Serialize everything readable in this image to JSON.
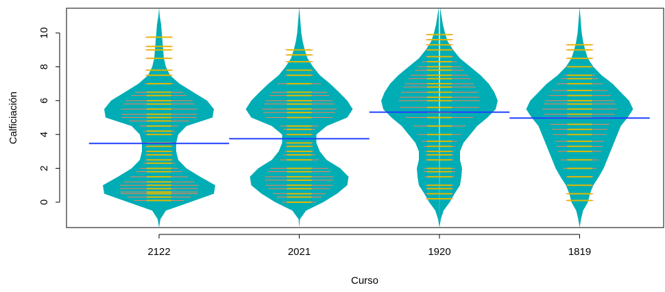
{
  "chart_data": {
    "type": "beanplot",
    "xlabel": "Curso",
    "ylabel": "Calficiación",
    "categories": [
      "2122",
      "2021",
      "1920",
      "1819"
    ],
    "ylim": [
      -1.5,
      11.46
    ],
    "yticks": [
      0,
      2,
      4,
      6,
      8,
      10
    ],
    "bean_color": "#00adb5",
    "line_color": "#e6b800",
    "outer_line_color": "#ff7f50",
    "mean_color": "#1f3fff",
    "density_y": [
      -1.5,
      -1,
      -0.5,
      0,
      0.5,
      1,
      1.5,
      2,
      2.5,
      3,
      3.5,
      4,
      4.5,
      5,
      5.5,
      6,
      6.5,
      7,
      7.5,
      8,
      8.5,
      9,
      9.5,
      10,
      10.5,
      11,
      11.5
    ],
    "density": [
      [
        0,
        0.02,
        0.1,
        0.45,
        0.8,
        0.82,
        0.6,
        0.4,
        0.28,
        0.25,
        0.25,
        0.28,
        0.4,
        0.78,
        0.8,
        0.7,
        0.5,
        0.3,
        0.16,
        0.1,
        0.07,
        0.06,
        0.05,
        0.04,
        0.03,
        0.01,
        0
      ],
      [
        0,
        0.01,
        0.1,
        0.35,
        0.55,
        0.7,
        0.72,
        0.6,
        0.4,
        0.3,
        0.25,
        0.25,
        0.4,
        0.7,
        0.78,
        0.7,
        0.58,
        0.45,
        0.3,
        0.2,
        0.12,
        0.08,
        0.05,
        0.03,
        0.02,
        0.01,
        0
      ],
      [
        0,
        0.02,
        0.06,
        0.15,
        0.22,
        0.3,
        0.32,
        0.33,
        0.3,
        0.3,
        0.35,
        0.45,
        0.55,
        0.7,
        0.82,
        0.85,
        0.8,
        0.72,
        0.6,
        0.45,
        0.3,
        0.2,
        0.12,
        0.08,
        0.05,
        0.03,
        0.01
      ],
      [
        0,
        0.02,
        0.05,
        0.12,
        0.15,
        0.2,
        0.28,
        0.35,
        0.4,
        0.45,
        0.5,
        0.55,
        0.6,
        0.7,
        0.78,
        0.72,
        0.6,
        0.48,
        0.32,
        0.2,
        0.12,
        0.08,
        0.05,
        0.03,
        0.02,
        0.01,
        0
      ]
    ],
    "observations": [
      [
        0.1,
        0.3,
        0.5,
        0.6,
        0.8,
        1,
        1.2,
        1.5,
        1.8,
        2,
        2.3,
        2.5,
        2.8,
        3,
        3.3,
        3.5,
        4,
        4.2,
        4.5,
        4.8,
        5,
        5,
        5.2,
        5.5,
        5.8,
        6,
        6.3,
        6.5,
        7,
        7.5,
        7.8,
        8.5,
        9,
        9.2,
        9.75
      ],
      [
        0,
        0.3,
        0.5,
        0.8,
        1,
        1.3,
        1.5,
        1.8,
        2,
        2.5,
        2.8,
        3,
        3.3,
        3.5,
        4,
        4.3,
        4.5,
        5,
        5,
        5.3,
        5.5,
        5.8,
        6,
        6.3,
        6.5,
        7,
        7.5,
        7.8,
        8.3,
        8.7,
        9
      ],
      [
        0.2,
        0.5,
        0.8,
        1,
        1.5,
        1.8,
        2,
        2.5,
        2.8,
        3,
        3.3,
        3.6,
        4,
        4.5,
        5,
        5.3,
        5.6,
        6,
        6.2,
        6.5,
        6.8,
        7,
        7.3,
        7.5,
        7.8,
        8,
        8.3,
        8.6,
        9,
        9.3,
        9.6,
        9.9
      ],
      [
        0.1,
        0.5,
        1,
        1.5,
        2,
        2.5,
        3,
        3.3,
        3.6,
        4,
        4.3,
        4.6,
        5,
        5.2,
        5.5,
        5.8,
        6,
        6.3,
        6.6,
        7,
        7.3,
        7.5,
        8,
        8.5,
        9,
        9.3
      ]
    ],
    "means": [
      3.47,
      3.75,
      5.32,
      4.97
    ]
  }
}
